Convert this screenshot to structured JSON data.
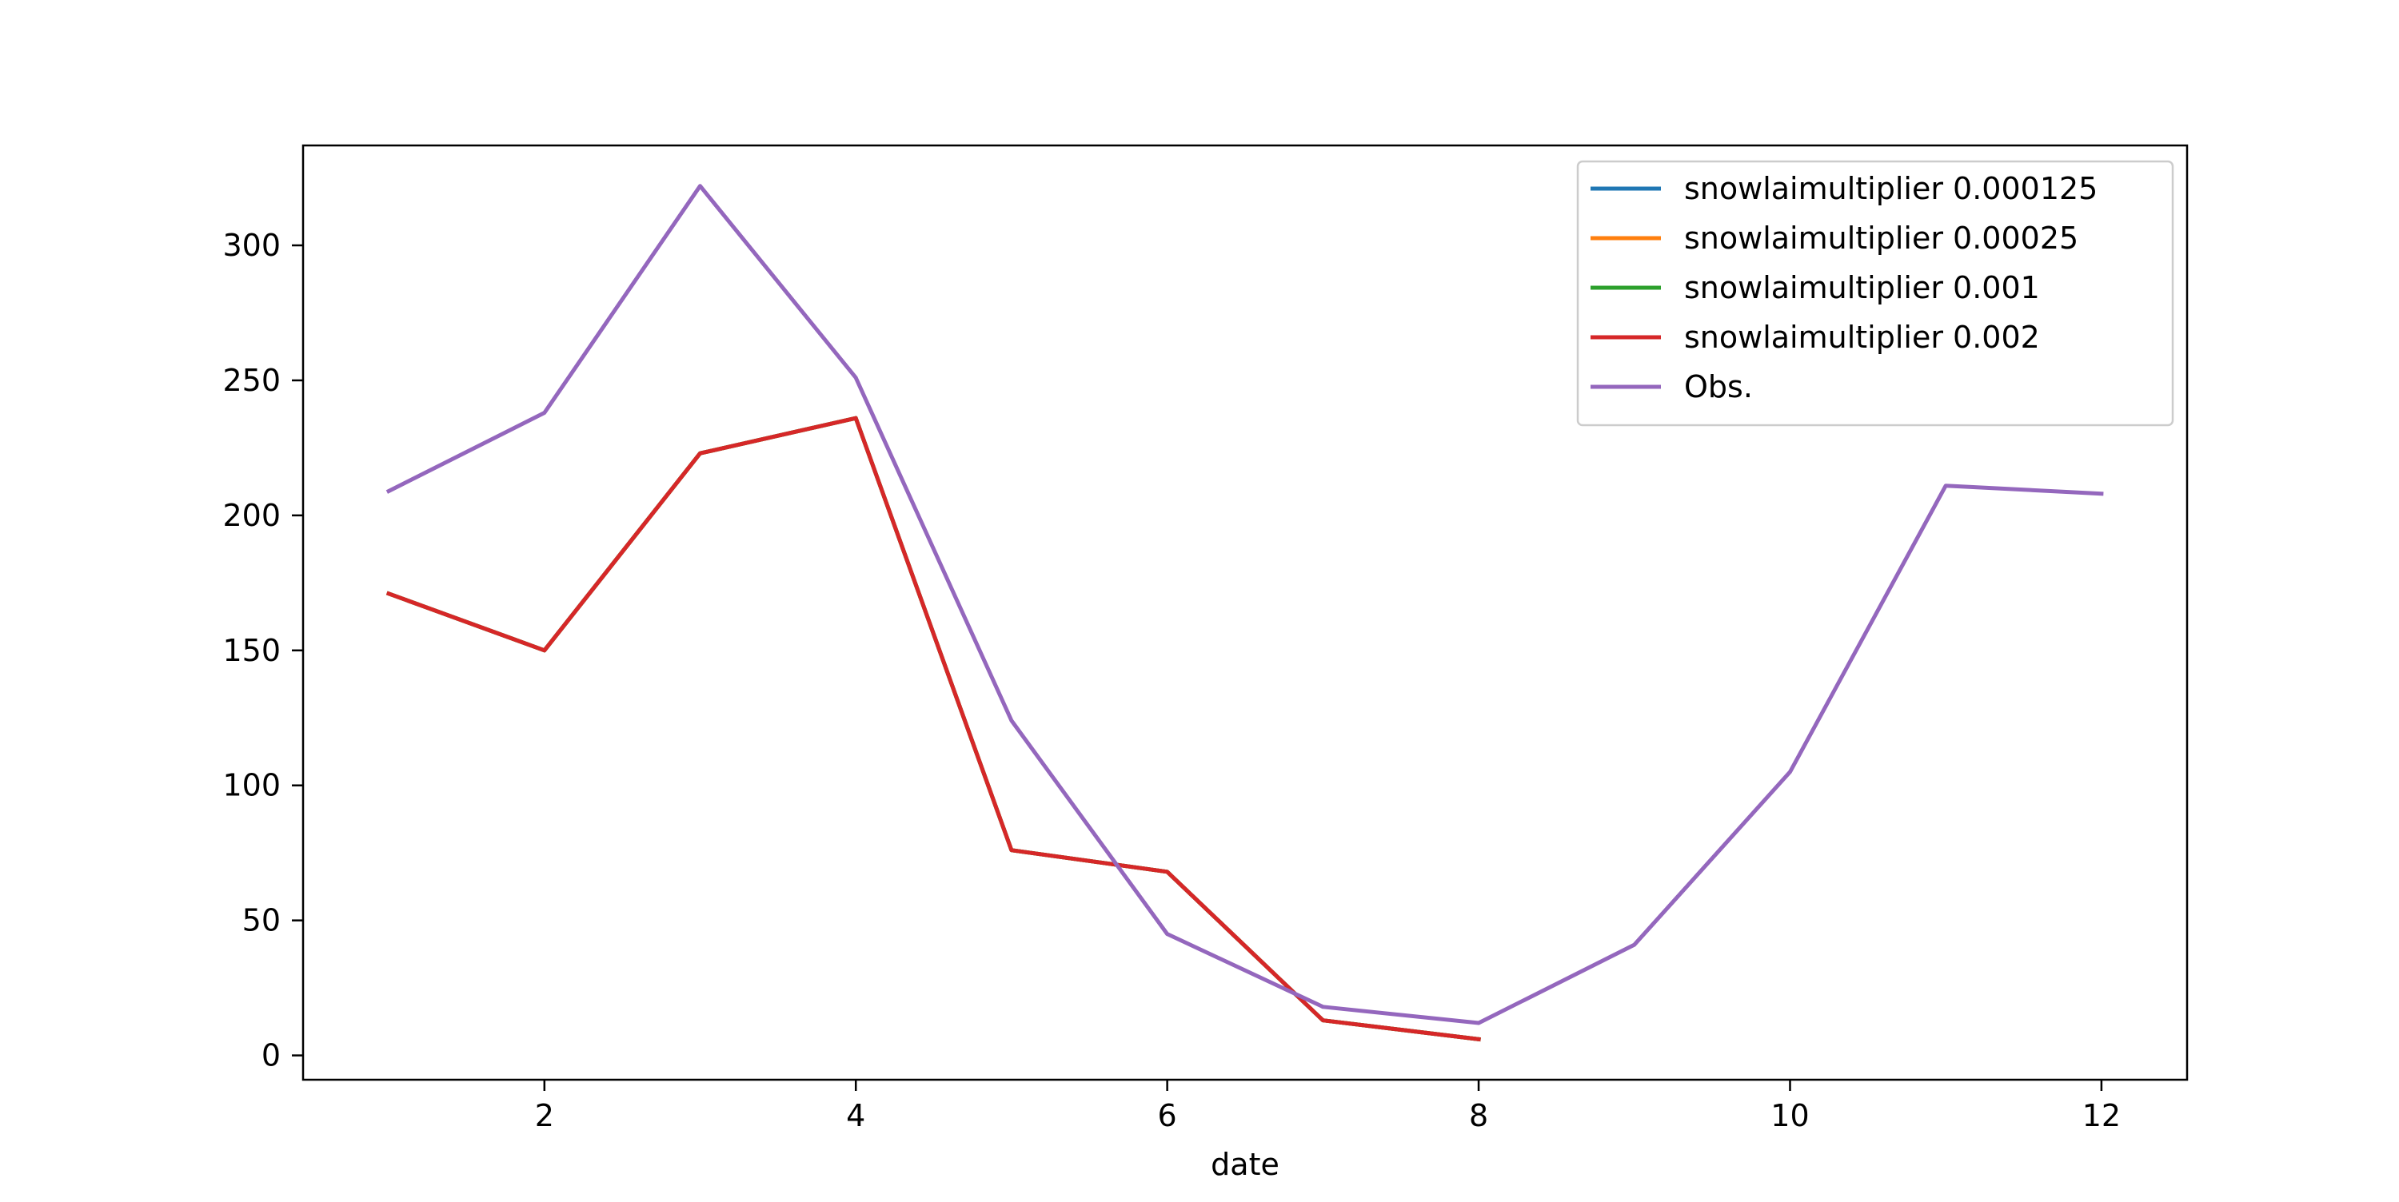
{
  "chart_data": {
    "type": "line",
    "title": "",
    "xlabel": "date",
    "ylabel": "",
    "xlim": [
      0.45,
      12.55
    ],
    "ylim": [
      -9,
      337
    ],
    "x_ticks": [
      2,
      4,
      6,
      8,
      10,
      12
    ],
    "x_tick_labels": [
      "2",
      "4",
      "6",
      "8",
      "10",
      "12"
    ],
    "y_ticks": [
      0,
      50,
      100,
      150,
      200,
      250,
      300
    ],
    "y_tick_labels": [
      "0",
      "50",
      "100",
      "150",
      "200",
      "250",
      "300"
    ],
    "grid": false,
    "legend_position": "top-right",
    "series": [
      {
        "name": "snowlaimultiplier 0.000125",
        "color": "#1f77b4",
        "x": [
          1,
          2,
          3,
          4,
          5,
          6,
          7,
          8
        ],
        "values": [
          171,
          150,
          223,
          236,
          76,
          68,
          13,
          6
        ]
      },
      {
        "name": "snowlaimultiplier 0.00025",
        "color": "#ff7f0e",
        "x": [
          1,
          2,
          3,
          4,
          5,
          6,
          7,
          8
        ],
        "values": [
          171,
          150,
          223,
          236,
          76,
          68,
          13,
          6
        ]
      },
      {
        "name": "snowlaimultiplier 0.001",
        "color": "#2ca02c",
        "x": [
          1,
          2,
          3,
          4,
          5,
          6,
          7,
          8
        ],
        "values": [
          171,
          150,
          223,
          236,
          76,
          68,
          13,
          6
        ]
      },
      {
        "name": "snowlaimultiplier 0.002",
        "color": "#d62728",
        "x": [
          1,
          2,
          3,
          4,
          5,
          6,
          7,
          8
        ],
        "values": [
          171,
          150,
          223,
          236,
          76,
          68,
          13,
          6
        ]
      },
      {
        "name": "Obs.",
        "color": "#9467bd",
        "x": [
          1,
          2,
          3,
          4,
          5,
          6,
          7,
          8,
          9,
          10,
          11,
          12
        ],
        "values": [
          209,
          238,
          322,
          251,
          124,
          45,
          18,
          12,
          41,
          105,
          211,
          208
        ]
      }
    ]
  }
}
